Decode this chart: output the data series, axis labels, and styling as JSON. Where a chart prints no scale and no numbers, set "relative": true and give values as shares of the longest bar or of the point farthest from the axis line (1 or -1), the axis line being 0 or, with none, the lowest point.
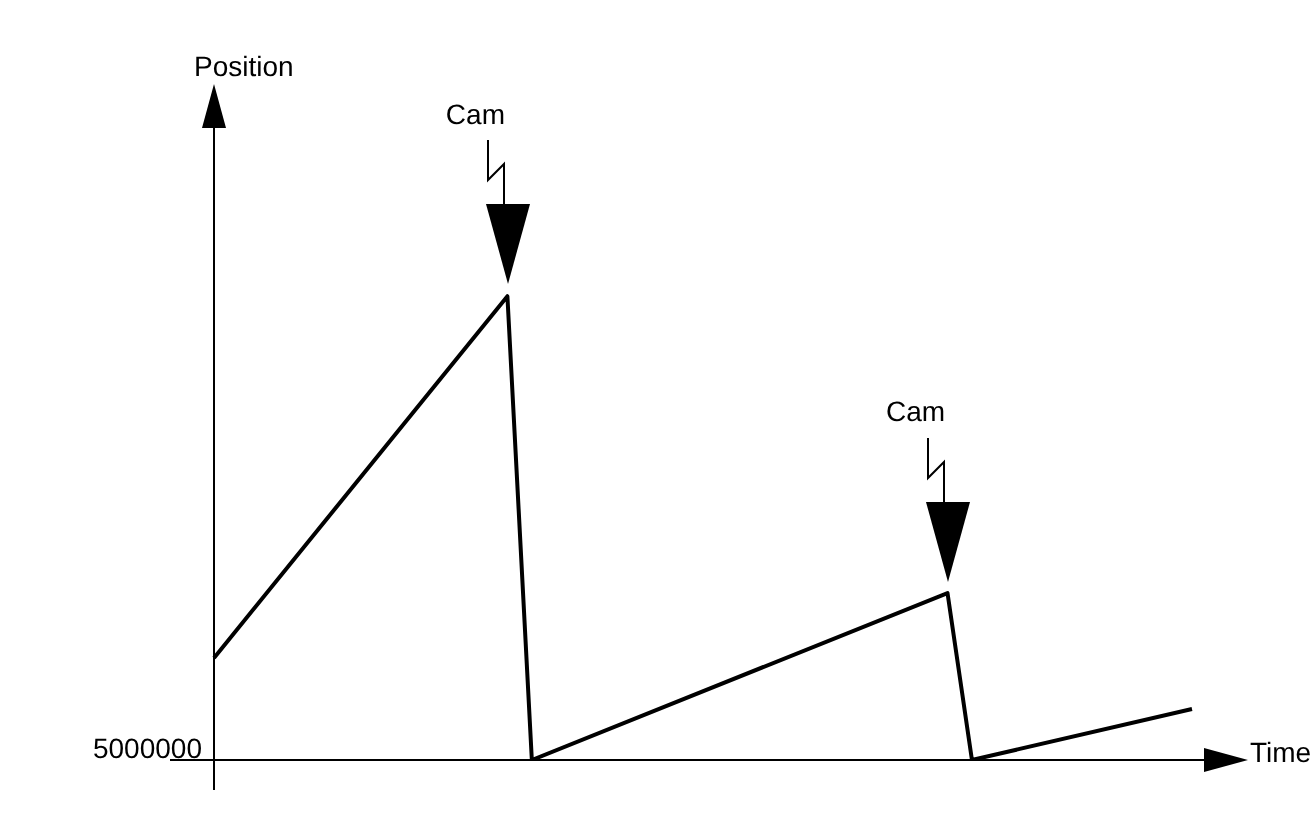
{
  "chart_data": {
    "type": "line",
    "relative": true,
    "xlabel": "Time",
    "legend": false,
    "marker": "none",
    "line_style": "solid",
    "categories": [
      null,
      null,
      null,
      null,
      null,
      null,
      null,
      null,
      null,
      null,
      null,
      null,
      null,
      null,
      null,
      null,
      null,
      null,
      null,
      null,
      null,
      null,
      null,
      null,
      null,
      null,
      null,
      null,
      null,
      null,
      null,
      null,
      null,
      null,
      null,
      null,
      null,
      null,
      null,
      null,
      null
    ],
    "series": [
      {
        "color": "#000000",
        "values": [
          0.22,
          null,
          null,
          null,
          null,
          null,
          null,
          null,
          null,
          null,
          null,
          null,
          1,
          0,
          null,
          null,
          null,
          null,
          null,
          null,
          null,
          null,
          null,
          null,
          null,
          null,
          null,
          null,
          null,
          null,
          0.36,
          0,
          null,
          null,
          null,
          null,
          null,
          null,
          null,
          null,
          0.11
        ]
      }
    ],
    "annotations": [
      "Cam",
      "Cam",
      "5000000",
      "Position"
    ]
  }
}
